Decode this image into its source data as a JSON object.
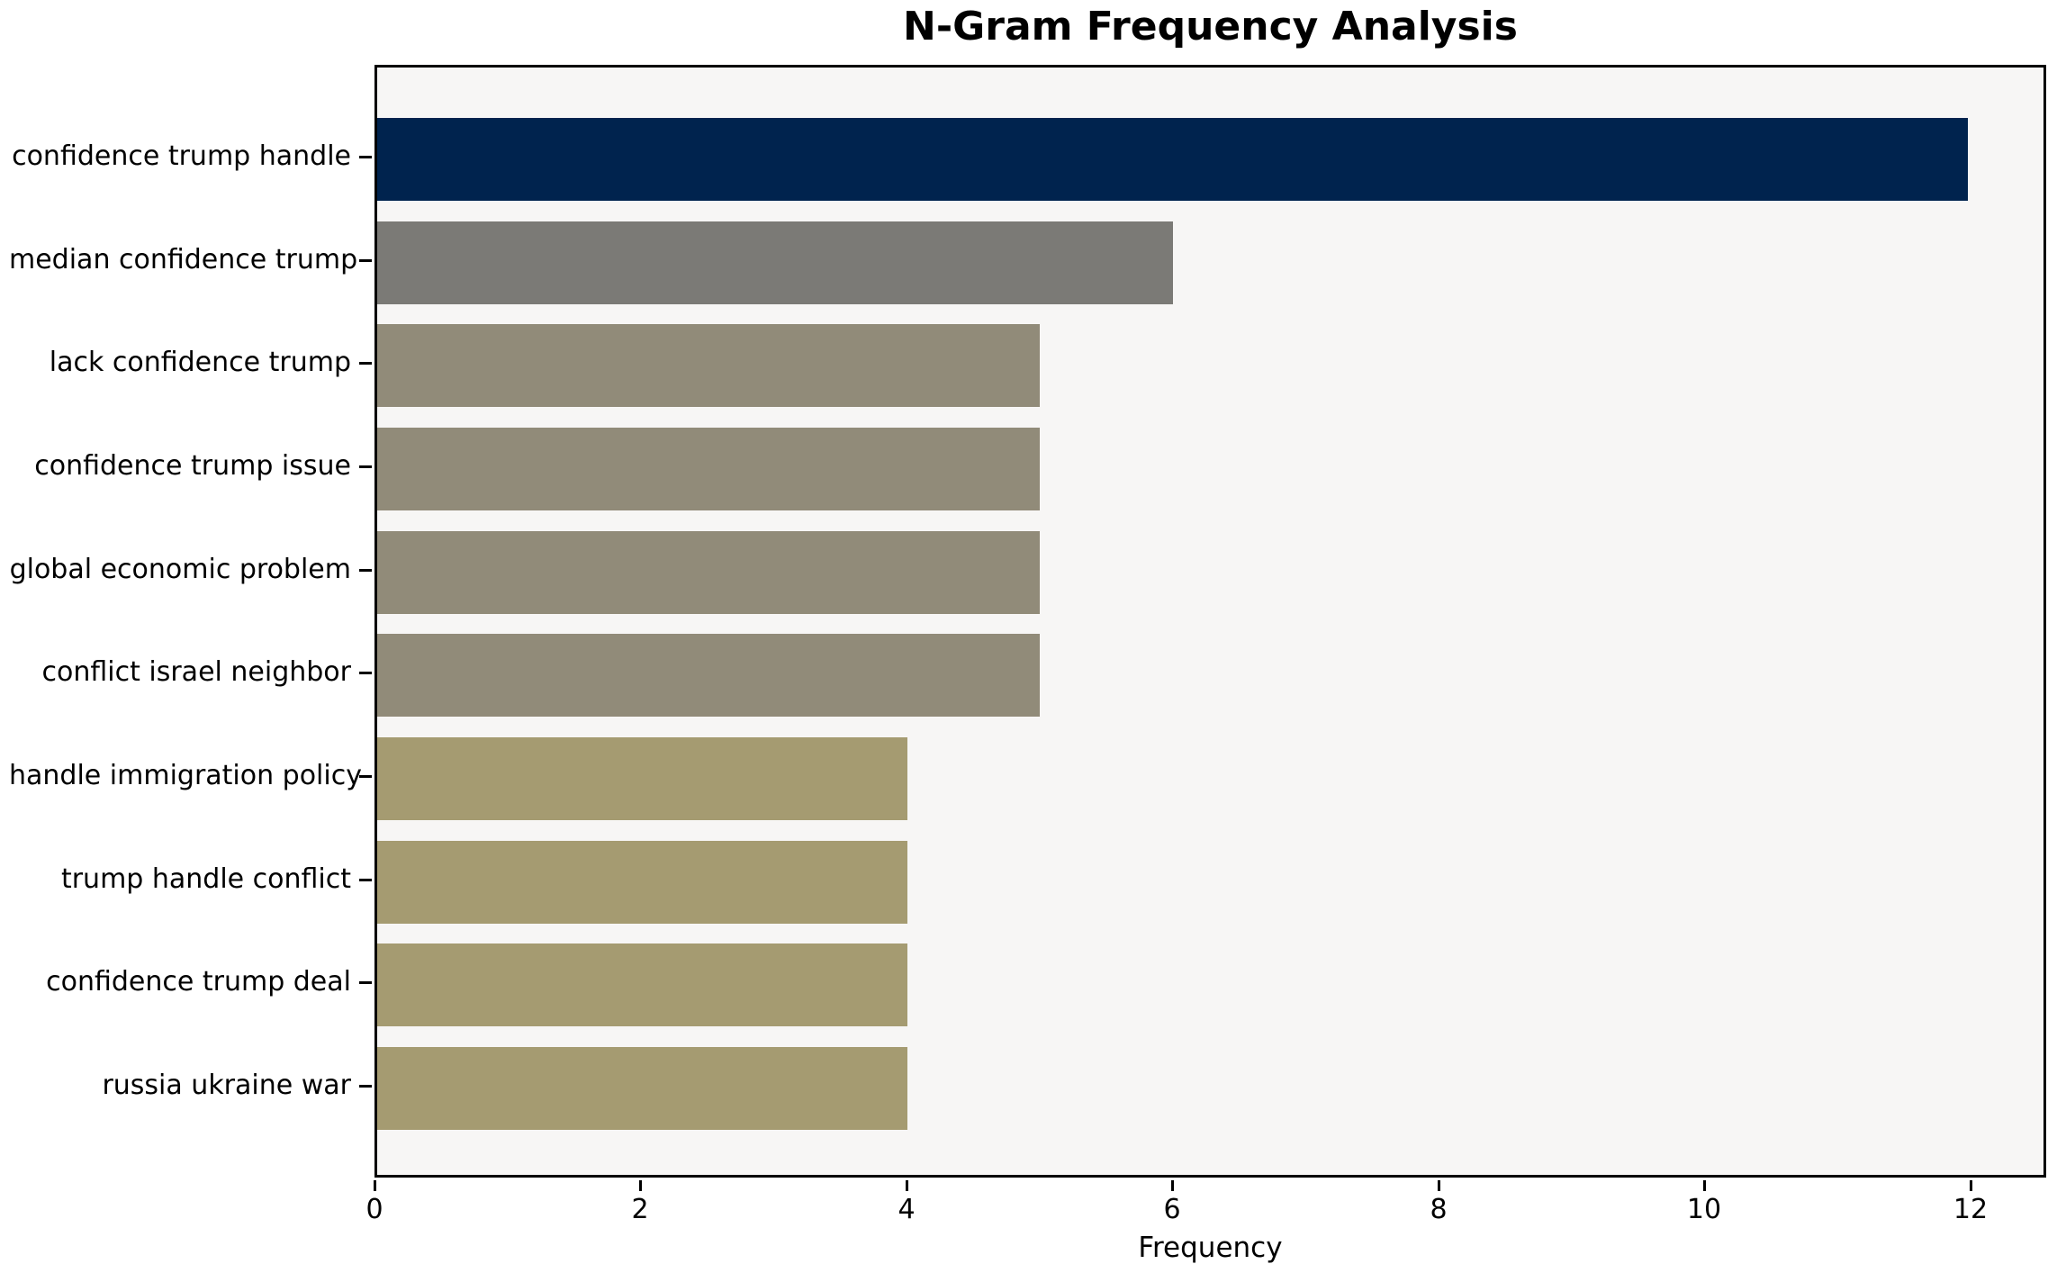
{
  "chart_data": {
    "type": "bar",
    "orientation": "horizontal",
    "title": "N-Gram Frequency Analysis",
    "xlabel": "Frequency",
    "ylabel": "",
    "categories": [
      "confidence trump handle",
      "median confidence trump",
      "lack confidence trump",
      "confidence trump issue",
      "global economic problem",
      "conflict israel neighbor",
      "handle immigration policy",
      "trump handle conflict",
      "confidence trump deal",
      "russia ukraine war"
    ],
    "values": [
      12,
      6,
      5,
      5,
      5,
      5,
      4,
      4,
      4,
      4
    ],
    "bar_colors": [
      "#00234e",
      "#7b7a76",
      "#918b79",
      "#918b79",
      "#918b79",
      "#918b79",
      "#a59b71",
      "#a59b71",
      "#a59b71",
      "#a59b71"
    ],
    "xticks": [
      0,
      2,
      4,
      6,
      8,
      10,
      12
    ],
    "xlim": [
      0,
      12.57
    ],
    "grid": false,
    "legend": null,
    "plot_background": "#f7f6f5",
    "page_background": "#ffffff",
    "spine_color": "#000000",
    "text_color": "#000000"
  }
}
